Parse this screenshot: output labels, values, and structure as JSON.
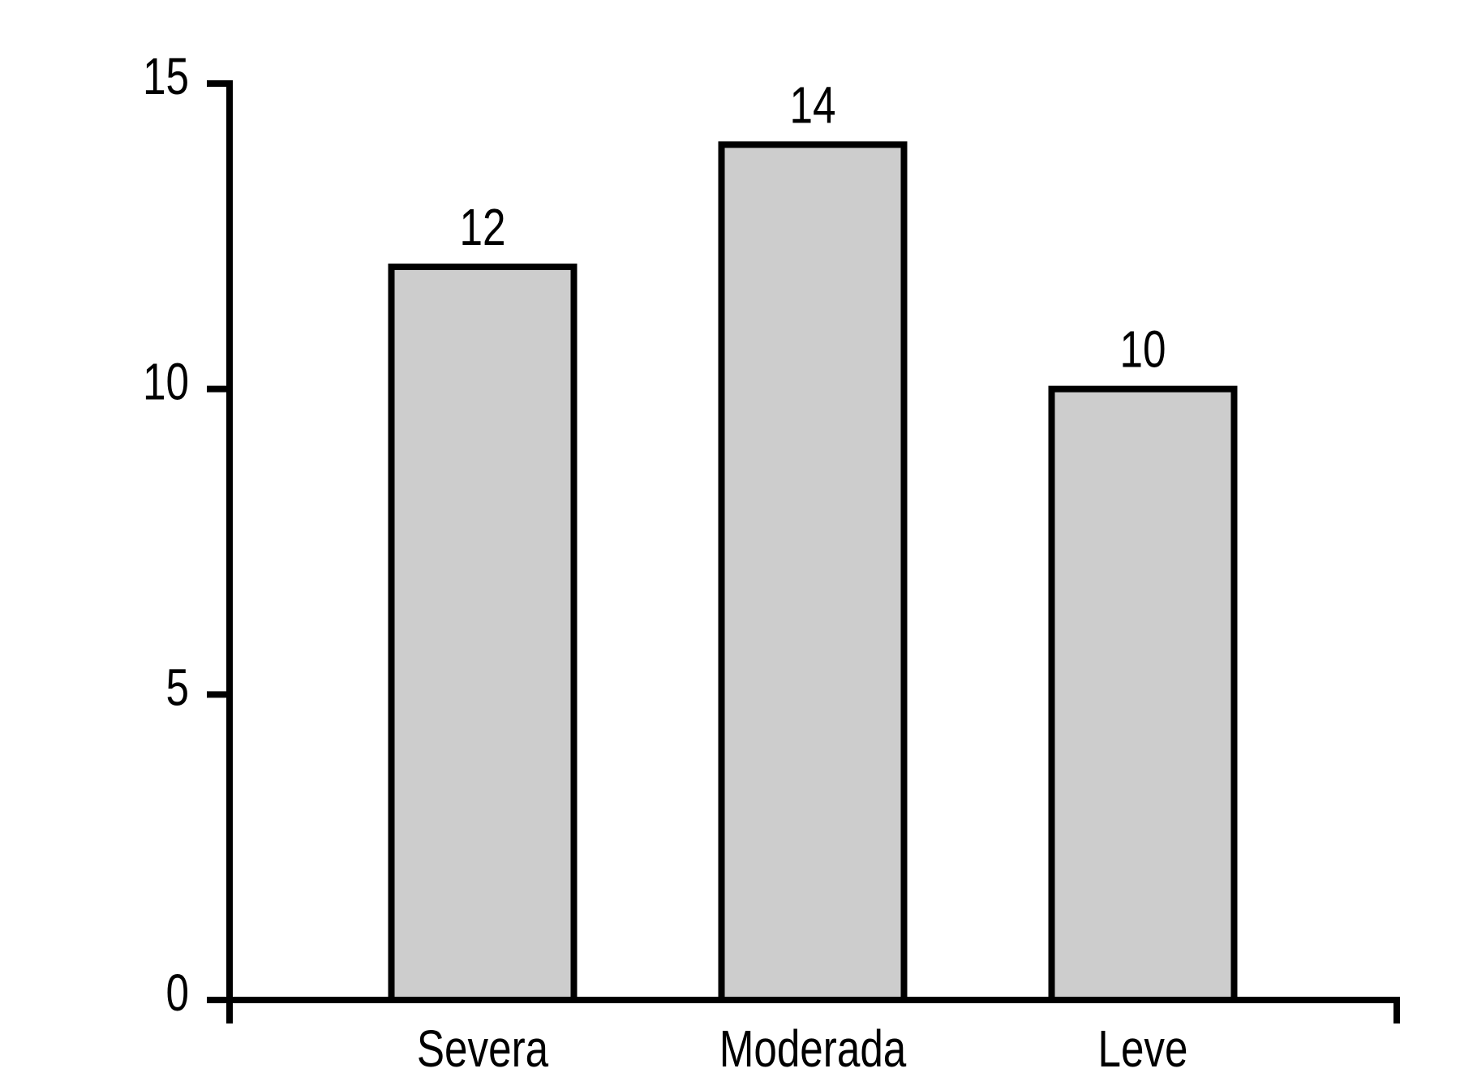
{
  "chart_data": {
    "type": "bar",
    "title": "",
    "categories": [
      "Severa",
      "Moderada",
      "Leve"
    ],
    "values": [
      12,
      14,
      10
    ],
    "xlabel": "",
    "ylabel": "",
    "ylim": [
      0,
      15
    ],
    "yticks": [
      0,
      5,
      10,
      15
    ],
    "grid": false,
    "legend": false,
    "colors": {
      "bar_fill": "#cdcdcd",
      "bar_stroke": "#000000",
      "axis": "#000000",
      "text": "#000000",
      "background": "#ffffff"
    }
  }
}
